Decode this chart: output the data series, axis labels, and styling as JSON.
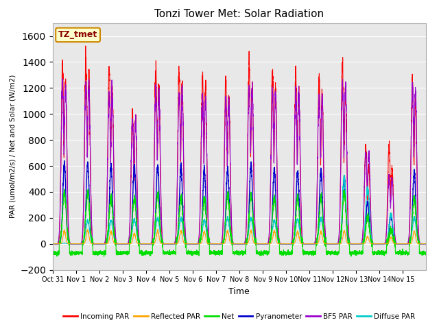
{
  "title": "Tonzi Tower Met: Solar Radiation",
  "ylabel": "PAR (umol/m2/s) / Net and Solar (W/m2)",
  "xlabel": "Time",
  "ylim": [
    -200,
    1700
  ],
  "yticks": [
    -200,
    0,
    200,
    400,
    600,
    800,
    1000,
    1200,
    1400,
    1600
  ],
  "bg_color": "#e8e8e8",
  "legend_label": "TZ_tmet",
  "series_colors": {
    "incoming_par": "#ff0000",
    "reflected_par": "#ffa500",
    "net": "#00dd00",
    "pyranometer": "#0000cc",
    "bf5_par": "#9900cc",
    "diffuse_par": "#00cccc"
  },
  "series_names": [
    "Incoming PAR",
    "Reflected PAR",
    "Net",
    "Pyranometer",
    "BF5 PAR",
    "Diffuse PAR"
  ],
  "n_days": 16,
  "day_labels": [
    "Oct 31",
    "Nov 1",
    "Nov 2",
    "Nov 3",
    "Nov 4",
    "Nov 5",
    "Nov 6",
    "Nov 7",
    "Nov 8",
    "Nov 9",
    "Nov 10",
    "Nov 11",
    "Nov 12",
    "Nov 13",
    "Nov 14",
    "Nov 15"
  ],
  "incoming_par_peaks": [
    1380,
    1390,
    1350,
    1020,
    1350,
    1330,
    1290,
    1250,
    1380,
    1320,
    1300,
    1270,
    1390,
    750,
    760,
    1260
  ],
  "incoming_par_peaks2": [
    1260,
    1280,
    1200,
    960,
    1200,
    1200,
    1200,
    1150,
    1200,
    1180,
    1150,
    1150,
    1200,
    600,
    580,
    1100
  ],
  "bf5_par_peaks": [
    1200,
    1200,
    1150,
    950,
    1150,
    1150,
    1100,
    1100,
    1200,
    1150,
    1150,
    1130,
    1200,
    700,
    500,
    1180
  ],
  "pyranometer_peaks": [
    615,
    625,
    600,
    600,
    605,
    600,
    575,
    575,
    615,
    580,
    555,
    560,
    510,
    325,
    230,
    555
  ],
  "net_peaks": [
    390,
    400,
    370,
    350,
    385,
    360,
    350,
    370,
    375,
    350,
    355,
    355,
    395,
    210,
    105,
    345
  ],
  "reflected_par_peaks": [
    100,
    105,
    95,
    78,
    100,
    100,
    95,
    100,
    100,
    98,
    95,
    95,
    100,
    55,
    50,
    95
  ],
  "diffuse_par_peaks": [
    5,
    180,
    180,
    190,
    200,
    200,
    180,
    200,
    200,
    180,
    190,
    200,
    500,
    430,
    230,
    200
  ],
  "net_night": -70,
  "points_per_day": 288
}
